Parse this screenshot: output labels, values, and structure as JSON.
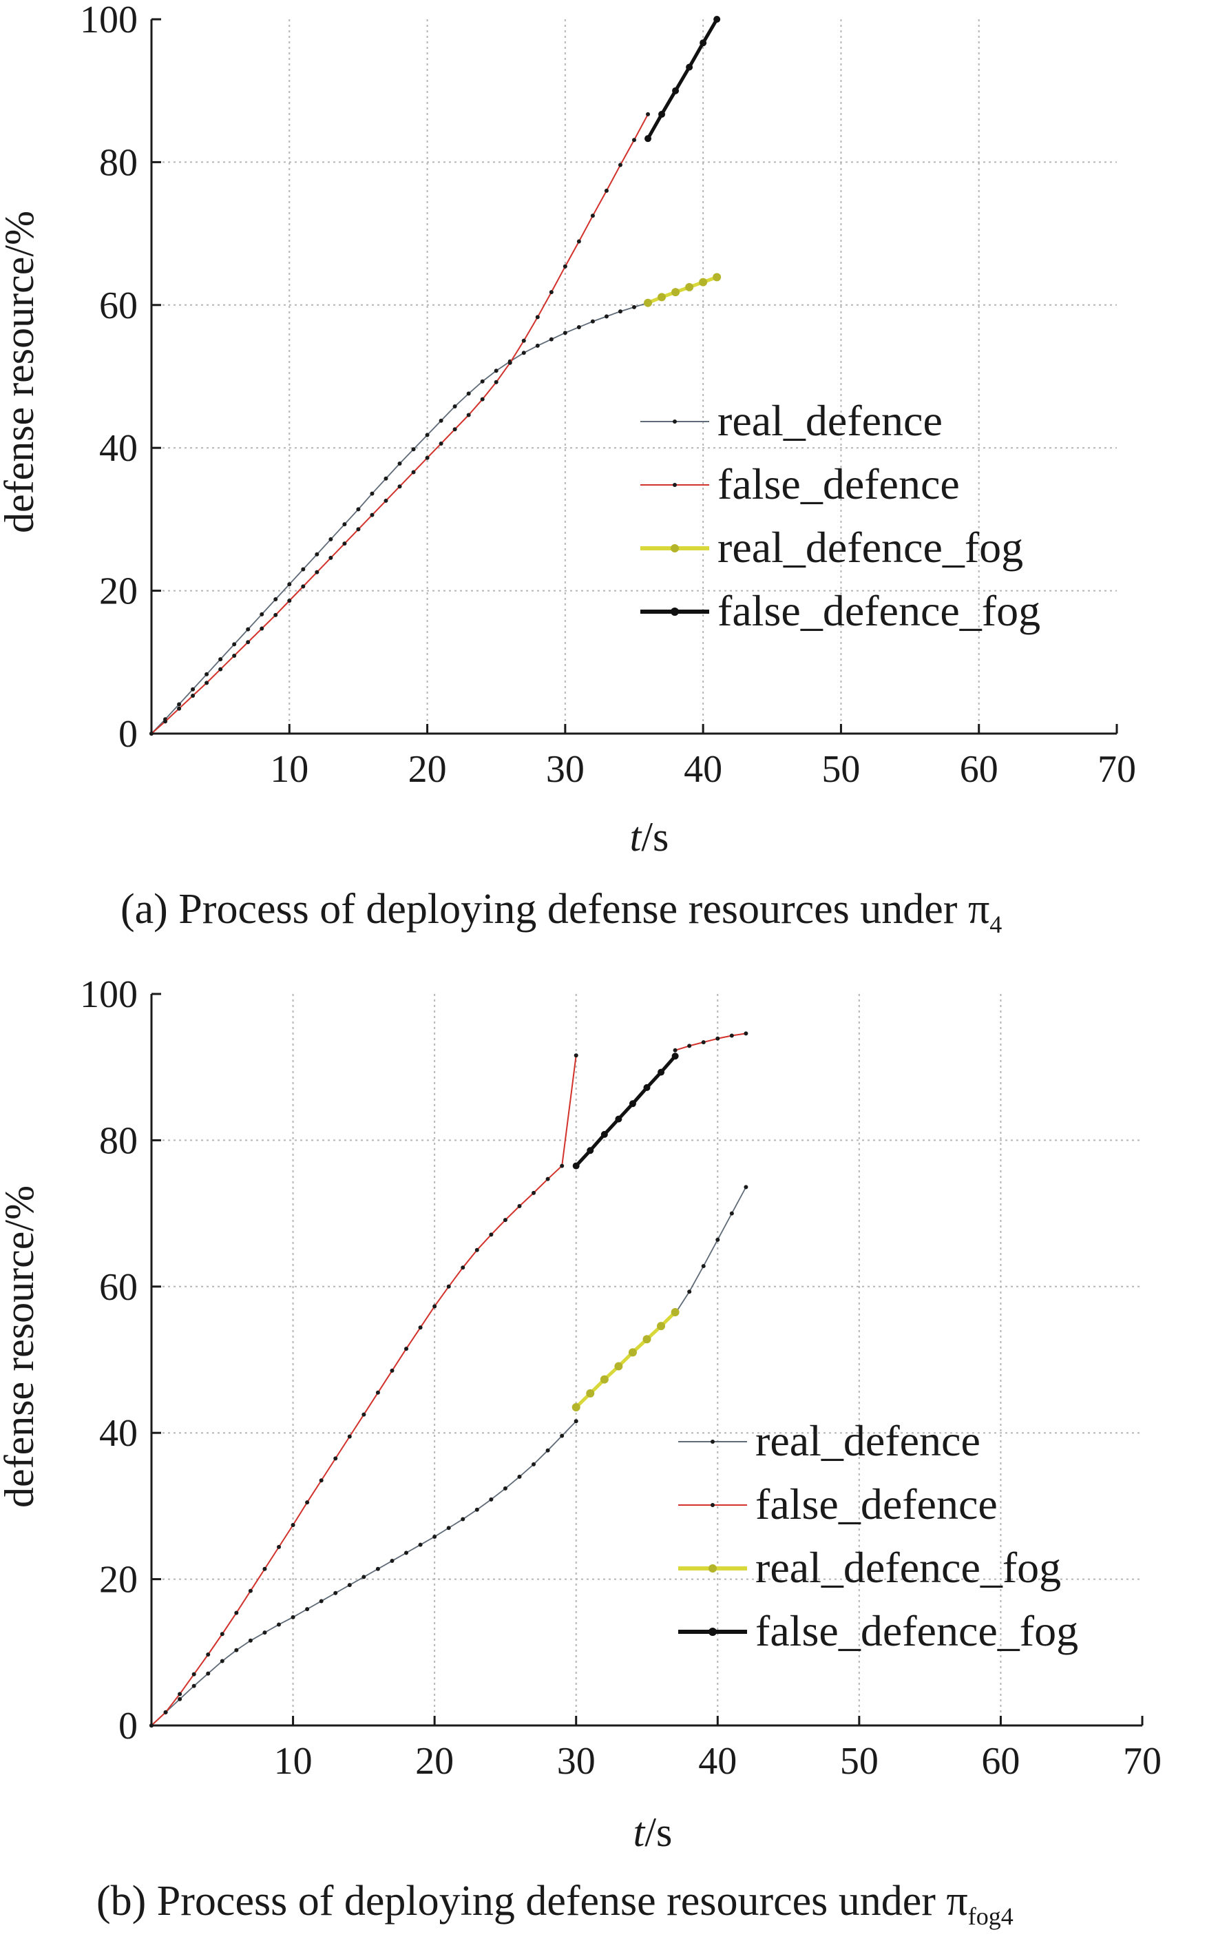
{
  "colors": {
    "real_defence": "#5f6b78",
    "false_defence": "#d2322b",
    "real_defence_fog": "#d8d83a",
    "false_defence_fog": "#111111",
    "grid": "#b5b5b5"
  },
  "chart_data": [
    {
      "id": "a",
      "type": "line",
      "caption": "(a) Process of deploying defense resources under π",
      "caption_subscript": "4",
      "xlabel_italic": "t",
      "xlabel_unit": "/s",
      "ylabel": "defense resource/%",
      "xlim": [
        0,
        70
      ],
      "ylim": [
        0,
        100
      ],
      "xticks": [
        10,
        20,
        30,
        40,
        50,
        60,
        70
      ],
      "yticks": [
        0,
        20,
        40,
        60,
        80,
        100
      ],
      "grid": true,
      "legend_position": "center-right",
      "series": [
        {
          "name": "real_defence",
          "key": "real_defence",
          "marker": 3,
          "stroke": 1.8,
          "x": [
            0,
            1,
            2,
            3,
            4,
            5,
            6,
            7,
            8,
            9,
            10,
            11,
            12,
            13,
            14,
            15,
            16,
            17,
            18,
            19,
            20,
            21,
            22,
            23,
            24,
            25,
            26,
            27,
            28,
            29,
            30,
            31,
            32,
            33,
            34,
            35,
            36
          ],
          "y": [
            0,
            2.0,
            4.1,
            6.2,
            8.3,
            10.4,
            12.5,
            14.6,
            16.7,
            18.8,
            20.9,
            23.0,
            25.1,
            27.2,
            29.3,
            31.4,
            33.6,
            35.7,
            37.8,
            39.8,
            41.8,
            43.8,
            45.8,
            47.6,
            49.3,
            50.8,
            52.1,
            53.3,
            54.3,
            55.2,
            56.1,
            56.9,
            57.7,
            58.4,
            59.1,
            59.7,
            60.3
          ]
        },
        {
          "name": "false_defence",
          "key": "false_defence",
          "marker": 3,
          "stroke": 2,
          "x": [
            0,
            1,
            2,
            3,
            4,
            5,
            6,
            7,
            8,
            9,
            10,
            11,
            12,
            13,
            14,
            15,
            16,
            17,
            18,
            19,
            20,
            21,
            22,
            23,
            24,
            25,
            26,
            27,
            28,
            29,
            30,
            31,
            32,
            33,
            34,
            35,
            36
          ],
          "y": [
            0,
            1.7,
            3.5,
            5.3,
            7.1,
            9.0,
            10.9,
            12.8,
            14.7,
            16.6,
            18.6,
            20.6,
            22.6,
            24.6,
            26.6,
            28.6,
            30.6,
            32.6,
            34.6,
            36.6,
            38.6,
            40.6,
            42.6,
            44.6,
            46.8,
            49.2,
            51.9,
            55.0,
            58.3,
            61.8,
            65.4,
            68.9,
            72.5,
            76.0,
            79.6,
            83.1,
            86.7
          ]
        },
        {
          "name": "real_defence_fog",
          "key": "real_defence_fog",
          "marker": 6,
          "stroke": 5,
          "x": [
            36,
            37,
            38,
            39,
            40,
            41
          ],
          "y": [
            60.3,
            61.1,
            61.8,
            62.5,
            63.2,
            63.9
          ]
        },
        {
          "name": "false_defence_fog",
          "key": "false_defence_fog",
          "marker": 5,
          "stroke": 5,
          "x": [
            36,
            37,
            38,
            39,
            40,
            41
          ],
          "y": [
            83.3,
            86.7,
            90.0,
            93.3,
            96.7,
            100
          ]
        }
      ]
    },
    {
      "id": "b",
      "type": "line",
      "caption": "(b) Process of deploying defense resources under π",
      "caption_subscript": "fog4",
      "xlabel_italic": "t",
      "xlabel_unit": "/s",
      "ylabel": "defense resource/%",
      "xlim": [
        0,
        70
      ],
      "ylim": [
        0,
        100
      ],
      "xticks": [
        10,
        20,
        30,
        40,
        50,
        60,
        70
      ],
      "yticks": [
        0,
        20,
        40,
        60,
        80,
        100
      ],
      "grid": true,
      "legend_position": "bottom-right",
      "series": [
        {
          "name": "real_defence",
          "key": "real_defence",
          "marker": 3,
          "stroke": 1.8,
          "x": [
            0,
            1,
            2,
            3,
            4,
            5,
            6,
            7,
            8,
            9,
            10,
            11,
            12,
            13,
            14,
            15,
            16,
            17,
            18,
            19,
            20,
            21,
            22,
            23,
            24,
            25,
            26,
            27,
            28,
            29,
            30,
            37,
            38,
            39,
            40,
            41,
            42
          ],
          "y": [
            0,
            1.8,
            3.6,
            5.4,
            7.1,
            8.8,
            10.3,
            11.6,
            12.7,
            13.8,
            14.8,
            15.9,
            17.0,
            18.1,
            19.2,
            20.3,
            21.4,
            22.5,
            23.6,
            24.7,
            25.8,
            27.0,
            28.2,
            29.5,
            30.9,
            32.4,
            34.0,
            35.7,
            37.6,
            39.6,
            41.6,
            56.3,
            59.3,
            62.8,
            66.4,
            70.0,
            73.6
          ]
        },
        {
          "name": "false_defence",
          "key": "false_defence",
          "marker": 3,
          "stroke": 2,
          "x": [
            0,
            1,
            2,
            3,
            4,
            5,
            6,
            7,
            8,
            9,
            10,
            11,
            12,
            13,
            14,
            15,
            16,
            17,
            18,
            19,
            20,
            21,
            22,
            23,
            24,
            25,
            26,
            27,
            28,
            29,
            30,
            37,
            38,
            39,
            40,
            41,
            42
          ],
          "y": [
            0,
            1.8,
            4.3,
            7.0,
            9.7,
            12.5,
            15.4,
            18.4,
            21.4,
            24.4,
            27.4,
            30.5,
            33.5,
            36.5,
            39.5,
            42.5,
            45.5,
            48.5,
            51.5,
            54.4,
            57.3,
            60.0,
            62.6,
            65.0,
            67.1,
            69.1,
            71.0,
            72.8,
            74.7,
            76.5,
            91.6,
            92.3,
            92.9,
            93.4,
            93.9,
            94.3,
            94.6
          ]
        },
        {
          "name": "real_defence_fog",
          "key": "real_defence_fog",
          "marker": 6,
          "stroke": 5,
          "x": [
            30,
            31,
            32,
            33,
            34,
            35,
            36,
            37
          ],
          "y": [
            43.5,
            45.4,
            47.3,
            49.1,
            51.0,
            52.8,
            54.6,
            56.5
          ]
        },
        {
          "name": "false_defence_fog",
          "key": "false_defence_fog",
          "marker": 5,
          "stroke": 5,
          "x": [
            30,
            31,
            32,
            33,
            34,
            35,
            36,
            37
          ],
          "y": [
            76.5,
            78.6,
            80.8,
            82.9,
            85.0,
            87.2,
            89.3,
            91.5
          ]
        }
      ]
    }
  ]
}
